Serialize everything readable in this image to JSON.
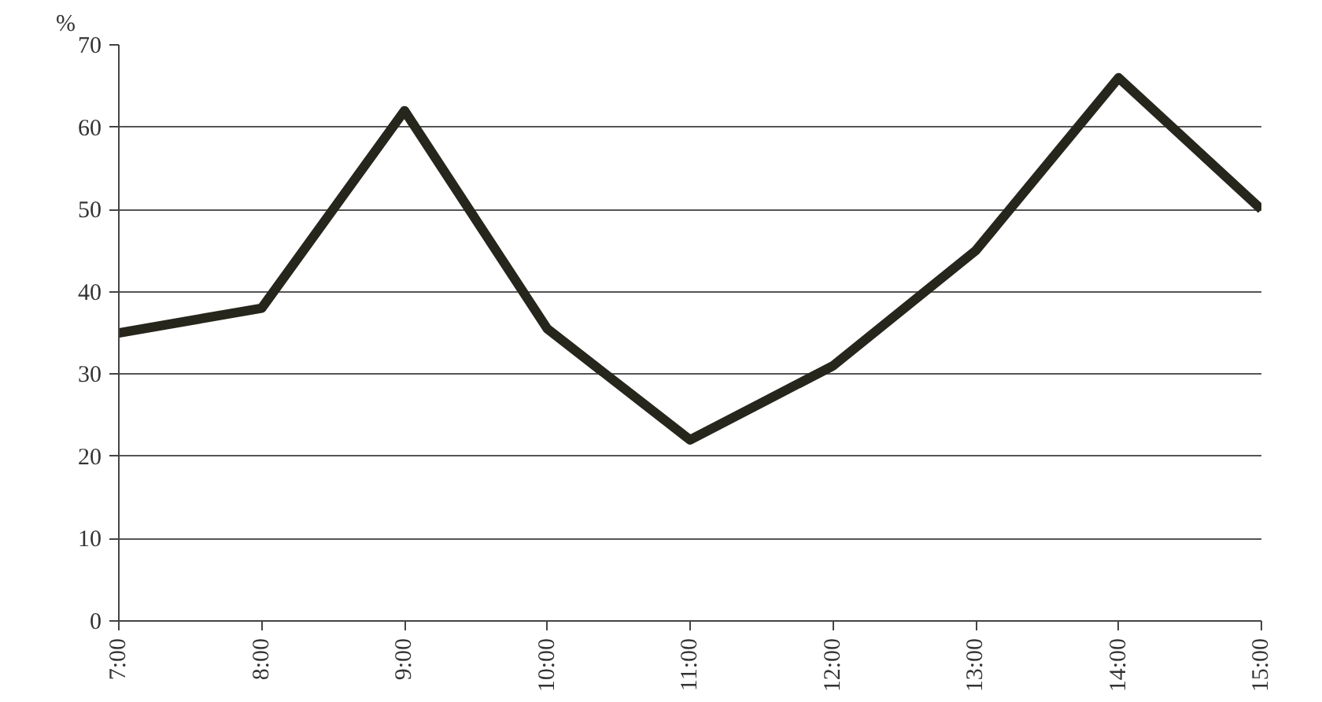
{
  "chart_data": {
    "type": "line",
    "ylabel": "%",
    "x": [
      7,
      8,
      9,
      10,
      11,
      12,
      13,
      14,
      15
    ],
    "series": [
      {
        "color": "#26261c",
        "values": [
          35,
          38,
          62,
          35.5,
          22,
          31,
          45,
          66,
          50
        ]
      }
    ],
    "xlim": [
      7,
      15
    ],
    "xticks": [
      {
        "value": 7,
        "label": "7:00"
      },
      {
        "value": 8,
        "label": "8:00"
      },
      {
        "value": 9,
        "label": "9:00"
      },
      {
        "value": 10,
        "label": "10:00"
      },
      {
        "value": 11,
        "label": "11:00"
      },
      {
        "value": 12,
        "label": "12:00"
      },
      {
        "value": 13,
        "label": "13:00"
      },
      {
        "value": 14,
        "label": "14:00"
      },
      {
        "value": 15,
        "label": "15:00"
      }
    ],
    "ylim": [
      0,
      70
    ],
    "yticks": [
      0,
      10,
      20,
      30,
      40,
      50,
      60,
      70
    ],
    "grid": "y",
    "marker": "none",
    "line_style": "solid"
  }
}
